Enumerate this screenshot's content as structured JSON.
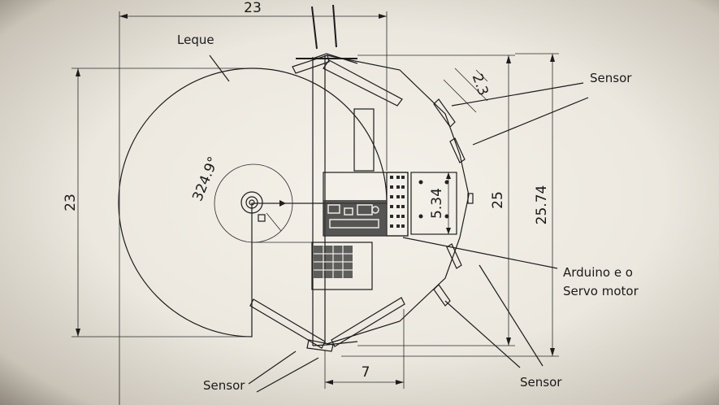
{
  "labels": {
    "leque": "Leque",
    "sensor_top": "Sensor",
    "sensor_bottom_left": "Sensor",
    "sensor_bottom_right": "Sensor",
    "arduino_line1": "Arduino e o",
    "arduino_line2": "Servo motor"
  },
  "dimensions": {
    "width_top": "23",
    "height_left": "23",
    "angle": "324.9°",
    "sensor_gap": "2.3",
    "board_height": "5.34",
    "height_inner": "25",
    "height_outer": "25.74",
    "bottom_width": "7"
  }
}
